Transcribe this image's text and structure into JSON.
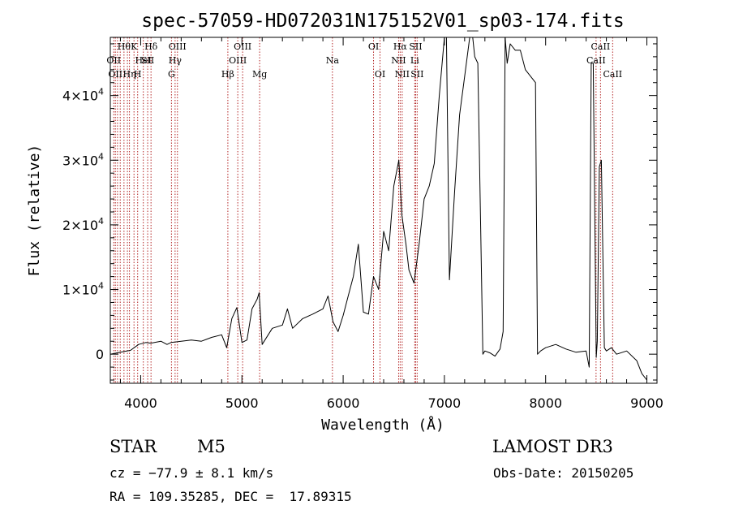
{
  "chart_data": {
    "type": "line",
    "title": "spec-57059-HD072031N175152V01_sp03-174.fits",
    "xlabel": "Wavelength (Å)",
    "ylabel": "Flux (relative)",
    "xlim": [
      3700,
      9100
    ],
    "ylim": [
      -4500,
      49000
    ],
    "x_ticks": [
      4000,
      5000,
      6000,
      7000,
      8000,
      9000
    ],
    "x_tick_labels": [
      "4000",
      "5000",
      "6000",
      "7000",
      "8000",
      "9000"
    ],
    "y_ticks": [
      0,
      10000,
      20000,
      30000,
      40000
    ],
    "y_tick_labels": [
      {
        "base": "0",
        "exp": ""
      },
      {
        "base": "1×10",
        "exp": "4"
      },
      {
        "base": "2×10",
        "exp": "4"
      },
      {
        "base": "3×10",
        "exp": "4"
      },
      {
        "base": "4×10",
        "exp": "4"
      }
    ],
    "grid": false,
    "series": [
      {
        "color": "#000000",
        "x": [
          3700,
          3800,
          3900,
          3980,
          4050,
          4100,
          4200,
          4260,
          4300,
          4400,
          4500,
          4600,
          4700,
          4800,
          4850,
          4900,
          4950,
          5000,
          5050,
          5100,
          5150,
          5170,
          5200,
          5300,
          5400,
          5450,
          5500,
          5600,
          5700,
          5800,
          5850,
          5900,
          5950,
          6000,
          6050,
          6100,
          6150,
          6200,
          6250,
          6300,
          6350,
          6400,
          6450,
          6500,
          6550,
          6580,
          6620,
          6650,
          6700,
          6750,
          6800,
          6850,
          6900,
          6950,
          7000,
          7020,
          7050,
          7100,
          7150,
          7200,
          7250,
          7280,
          7300,
          7330,
          7380,
          7400,
          7450,
          7500,
          7550,
          7580,
          7600,
          7620,
          7650,
          7700,
          7750,
          7800,
          7850,
          7900,
          7920,
          7950,
          8000,
          8100,
          8200,
          8300,
          8400,
          8430,
          8450,
          8470,
          8500,
          8510,
          8530,
          8550,
          8580,
          8600,
          8650,
          8700,
          8800,
          8900,
          8950,
          9000
        ],
        "y": [
          0,
          300,
          600,
          1500,
          1800,
          1700,
          2000,
          1500,
          1800,
          2000,
          2200,
          2000,
          2600,
          3000,
          1000,
          5500,
          7200,
          1800,
          2200,
          7000,
          8500,
          9500,
          1500,
          4000,
          4500,
          7000,
          4000,
          5500,
          6200,
          7000,
          9000,
          5000,
          3500,
          6000,
          9000,
          12000,
          17000,
          6500,
          6200,
          12000,
          10000,
          19000,
          16000,
          26000,
          30000,
          21500,
          17000,
          13000,
          11000,
          17000,
          24000,
          26000,
          29500,
          40000,
          49000,
          49000,
          11500,
          25000,
          37000,
          43000,
          49000,
          49000,
          46000,
          45000,
          0,
          500,
          200,
          -300,
          800,
          3500,
          49000,
          45000,
          48000,
          47000,
          47000,
          44000,
          43000,
          42000,
          0,
          500,
          1000,
          1500,
          800,
          300,
          500,
          -2000,
          45000,
          45000,
          -500,
          2000,
          29000,
          30000,
          1000,
          500,
          1000,
          0,
          500,
          -1000,
          -3000,
          -4000
        ]
      }
    ],
    "lines": [
      {
        "x": 3734,
        "label": "OII",
        "row": 2
      },
      {
        "x": 3750,
        "label": "OII",
        "row": 3
      },
      {
        "x": 3771,
        "label": "",
        "row": 0
      },
      {
        "x": 3798,
        "label": "",
        "row": 0
      },
      {
        "x": 3835,
        "label": "Hθ",
        "row": 1
      },
      {
        "x": 3869,
        "label": "",
        "row": 0
      },
      {
        "x": 3889,
        "label": "Hη",
        "row": 3
      },
      {
        "x": 3934,
        "label": "K",
        "row": 1
      },
      {
        "x": 3970,
        "label": "H",
        "row": 3
      },
      {
        "x": 4026,
        "label": "HeI",
        "row": 2
      },
      {
        "x": 4069,
        "label": "SII",
        "row": 2
      },
      {
        "x": 4102,
        "label": "Hδ",
        "row": 1
      },
      {
        "x": 4304,
        "label": "G",
        "row": 3
      },
      {
        "x": 4340,
        "label": "Hγ",
        "row": 2
      },
      {
        "x": 4363,
        "label": "OIII",
        "row": 1
      },
      {
        "x": 4861,
        "label": "Hβ",
        "row": 3
      },
      {
        "x": 4959,
        "label": "OIII",
        "row": 2
      },
      {
        "x": 5007,
        "label": "OIII",
        "row": 1
      },
      {
        "x": 5175,
        "label": "Mg",
        "row": 3
      },
      {
        "x": 5894,
        "label": "Na",
        "row": 2
      },
      {
        "x": 6300,
        "label": "OI",
        "row": 1
      },
      {
        "x": 6364,
        "label": "OI",
        "row": 3
      },
      {
        "x": 6548,
        "label": "NII",
        "row": 2
      },
      {
        "x": 6563,
        "label": "Hα",
        "row": 1
      },
      {
        "x": 6583,
        "label": "NII",
        "row": 3
      },
      {
        "x": 6707,
        "label": "Li",
        "row": 2
      },
      {
        "x": 6716,
        "label": "SII",
        "row": 1
      },
      {
        "x": 6731,
        "label": "SII",
        "row": 3
      },
      {
        "x": 8498,
        "label": "CaII",
        "row": 2
      },
      {
        "x": 8542,
        "label": "CaII",
        "row": 1
      },
      {
        "x": 8662,
        "label": "CaII",
        "row": 3
      }
    ]
  },
  "info": {
    "object_type": "STAR",
    "subclass": "M5",
    "survey": "LAMOST DR3",
    "cz": "cz = −77.9 ± 8.1 km/s",
    "obs_date": "Obs-Date: 20150205",
    "coords": "RA = 109.35285, DEC =  17.89315"
  }
}
